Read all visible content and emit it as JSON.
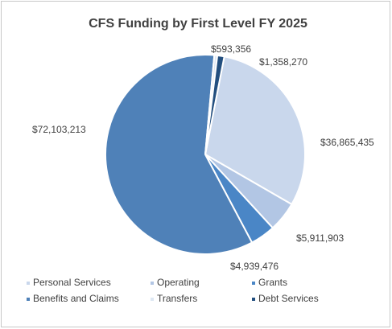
{
  "chart_data": {
    "type": "pie",
    "title": "CFS Funding by First Level FY 2025",
    "categories": [
      "Personal Services",
      "Operating",
      "Grants",
      "Benefits and Claims",
      "Transfers",
      "Debt Services"
    ],
    "values": [
      36865435,
      5911903,
      4939476,
      72103213,
      593356,
      1358270
    ],
    "value_labels": [
      "$36,865,435",
      "$5,911,903",
      "$4,939,476",
      "$72,103,213",
      "$593,356",
      "$1,358,270"
    ],
    "colors": [
      "#c9d7ec",
      "#b2c6e4",
      "#4a86c6",
      "#4f81b8",
      "#dde7f3",
      "#234f7f"
    ]
  }
}
